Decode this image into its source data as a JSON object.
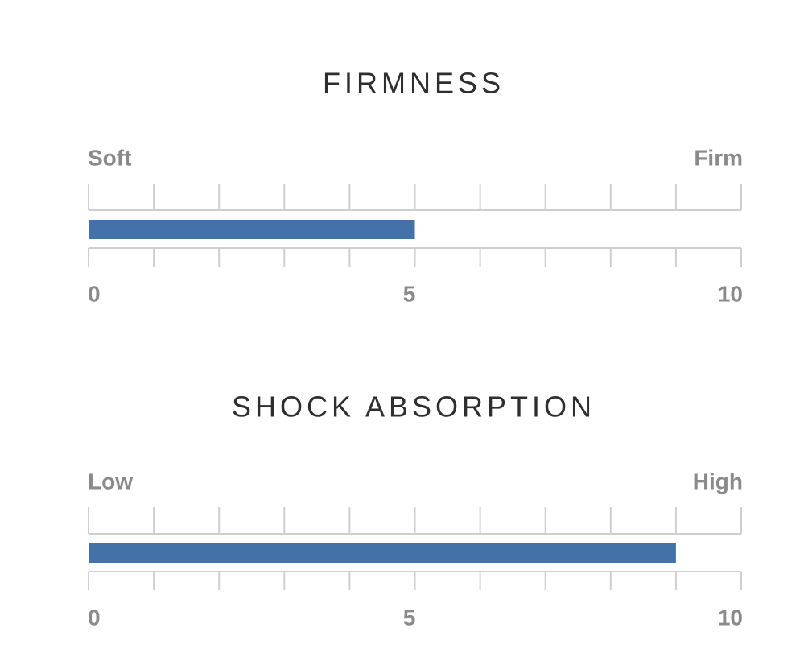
{
  "chart_data": [
    {
      "type": "bar",
      "title": "FIRMNESS",
      "min_label": "Soft",
      "max_label": "Firm",
      "values": [
        5
      ],
      "color": "#4272a8",
      "xlim": [
        0,
        10
      ],
      "xticks": [
        0,
        5,
        10
      ],
      "minor_ticks": [
        0,
        1,
        2,
        3,
        4,
        5,
        6,
        7,
        8,
        9,
        10
      ]
    },
    {
      "type": "bar",
      "title": "SHOCK ABSORPTION",
      "min_label": "Low",
      "max_label": "High",
      "values": [
        9
      ],
      "color": "#4272a8",
      "xlim": [
        0,
        10
      ],
      "xticks": [
        0,
        5,
        10
      ],
      "minor_ticks": [
        0,
        1,
        2,
        3,
        4,
        5,
        6,
        7,
        8,
        9,
        10
      ]
    }
  ]
}
